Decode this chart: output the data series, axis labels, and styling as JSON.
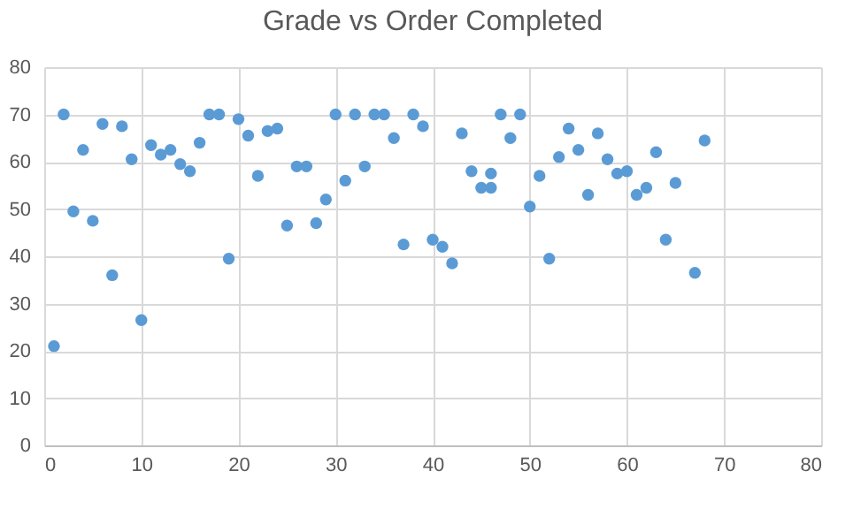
{
  "chart_data": {
    "type": "scatter",
    "title": "Grade vs Order Completed",
    "x": [
      1,
      2,
      3,
      4,
      5,
      6,
      7,
      8,
      9,
      10,
      11,
      12,
      13,
      14,
      15,
      16,
      17,
      18,
      19,
      20,
      21,
      22,
      23,
      24,
      25,
      26,
      27,
      28,
      29,
      30,
      31,
      32,
      33,
      34,
      35,
      36,
      37,
      38,
      39,
      40,
      41,
      42,
      43,
      44,
      45,
      46,
      46,
      47,
      48,
      49,
      50,
      51,
      52,
      53,
      54,
      55,
      56,
      57,
      58,
      59,
      60,
      61,
      62,
      63,
      64,
      65,
      67,
      68
    ],
    "series": [
      {
        "color": "#5b9bd5",
        "values": [
          21,
          70,
          49.5,
          62.5,
          47.5,
          68,
          36,
          67.5,
          60.5,
          26.5,
          63.5,
          61.5,
          62.5,
          59.5,
          58,
          64,
          70,
          70,
          39.5,
          69,
          65.5,
          57,
          66.5,
          67,
          46.5,
          59,
          59,
          47,
          52,
          70,
          56,
          70,
          59,
          70,
          70,
          65,
          42.5,
          70,
          67.5,
          43.5,
          42,
          38.5,
          66,
          58,
          54.5,
          57.5,
          54.5,
          70,
          65,
          70,
          50.5,
          57,
          39.5,
          61,
          67,
          62.5,
          53,
          66,
          60.5,
          57.5,
          58,
          53,
          54.5,
          62,
          43.5,
          55.5,
          36.5,
          64.5
        ]
      }
    ],
    "xlim": [
      0,
      80
    ],
    "xticks": [
      0,
      10,
      20,
      30,
      40,
      50,
      60,
      70,
      80
    ],
    "ylim": [
      0,
      80
    ],
    "yticks": [
      0,
      10,
      20,
      30,
      40,
      50,
      60,
      70,
      80
    ],
    "grid": true,
    "marker": "circle"
  }
}
